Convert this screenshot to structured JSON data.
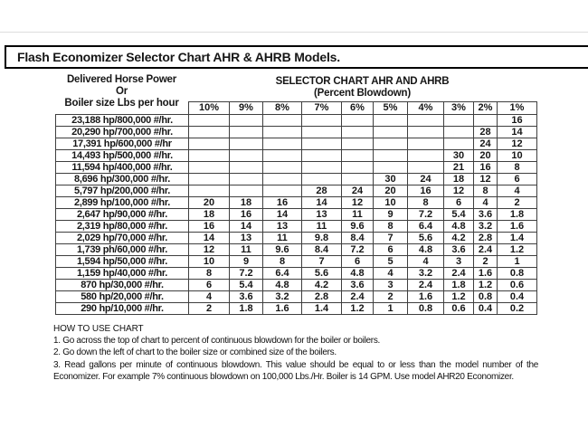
{
  "page": {
    "title": "Flash Economizer Selector Chart AHR & AHRB Models."
  },
  "left_header": {
    "line1": "Delivered Horse Power",
    "line2": "Or",
    "line3": "Boiler size Lbs per hour"
  },
  "right_header": {
    "line1": "SELECTOR CHART AHR AND AHRB",
    "line2": "(Percent Blowdown)"
  },
  "chart_data": {
    "type": "table",
    "title": "Selector Chart AHR and AHRB (gallons per minute of continuous blowdown)",
    "columns": [
      "10%",
      "9%",
      "8%",
      "7%",
      "6%",
      "5%",
      "4%",
      "3%",
      "2%",
      "1%"
    ],
    "rows": [
      {
        "label": "23,188 hp/800,000 #/hr.",
        "values": [
          "",
          "",
          "",
          "",
          "",
          "",
          "",
          "",
          "",
          "16"
        ]
      },
      {
        "label": "20,290 hp/700,000 #/hr.",
        "values": [
          "",
          "",
          "",
          "",
          "",
          "",
          "",
          "",
          "28",
          "14"
        ]
      },
      {
        "label": "17,391 hp/600,000 #/hr",
        "values": [
          "",
          "",
          "",
          "",
          "",
          "",
          "",
          "",
          "24",
          "12"
        ]
      },
      {
        "label": "14,493 hp/500,000 #/hr.",
        "values": [
          "",
          "",
          "",
          "",
          "",
          "",
          "",
          "30",
          "20",
          "10"
        ]
      },
      {
        "label": "11,594 hp/400,000 #/hr.",
        "values": [
          "",
          "",
          "",
          "",
          "",
          "",
          "",
          "21",
          "16",
          "8"
        ]
      },
      {
        "label": "8,696 hp/300,000 #/hr.",
        "values": [
          "",
          "",
          "",
          "",
          "",
          "30",
          "24",
          "18",
          "12",
          "6"
        ]
      },
      {
        "label": "5,797 hp/200,000 #/hr.",
        "values": [
          "",
          "",
          "",
          "28",
          "24",
          "20",
          "16",
          "12",
          "8",
          "4"
        ]
      },
      {
        "label": "2,899 hp/100,000 #/hr.",
        "values": [
          "20",
          "18",
          "16",
          "14",
          "12",
          "10",
          "8",
          "6",
          "4",
          "2"
        ]
      },
      {
        "label": "2,647 hp/90,000 #/hr.",
        "values": [
          "18",
          "16",
          "14",
          "13",
          "11",
          "9",
          "7.2",
          "5.4",
          "3.6",
          "1.8"
        ]
      },
      {
        "label": "2,319 hp/80,000 #/hr.",
        "values": [
          "16",
          "14",
          "13",
          "11",
          "9.6",
          "8",
          "6.4",
          "4.8",
          "3.2",
          "1.6"
        ]
      },
      {
        "label": "2,029 hp/70,000 #/hr.",
        "values": [
          "14",
          "13",
          "11",
          "9.8",
          "8.4",
          "7",
          "5.6",
          "4.2",
          "2.8",
          "1.4"
        ]
      },
      {
        "label": "1,739 ph/60,000 #/hr.",
        "values": [
          "12",
          "11",
          "9.6",
          "8.4",
          "7.2",
          "6",
          "4.8",
          "3.6",
          "2.4",
          "1.2"
        ]
      },
      {
        "label": "1,594 hp/50,000 #/hr.",
        "values": [
          "10",
          "9",
          "8",
          "7",
          "6",
          "5",
          "4",
          "3",
          "2",
          "1"
        ]
      },
      {
        "label": "1,159 hp/40,000 #/hr.",
        "values": [
          "8",
          "7.2",
          "6.4",
          "5.6",
          "4.8",
          "4",
          "3.2",
          "2.4",
          "1.6",
          "0.8"
        ]
      },
      {
        "label": "870 hp/30,000 #/hr.",
        "values": [
          "6",
          "5.4",
          "4.8",
          "4.2",
          "3.6",
          "3",
          "2.4",
          "1.8",
          "1.2",
          "0.6"
        ]
      },
      {
        "label": "580 hp/20,000 #/hr.",
        "values": [
          "4",
          "3.6",
          "3.2",
          "2.8",
          "2.4",
          "2",
          "1.6",
          "1.2",
          "0.8",
          "0.4"
        ]
      },
      {
        "label": "290 hp/10,000 #/hr.",
        "values": [
          "2",
          "1.8",
          "1.6",
          "1.4",
          "1.2",
          "1",
          "0.8",
          "0.6",
          "0.4",
          "0.2"
        ]
      }
    ]
  },
  "instructions": {
    "heading": "HOW TO USE CHART",
    "steps": [
      "1. Go across the top of chart to percent of continuous blowdown for the boiler or boilers.",
      "2. Go down the left of chart to the boiler size or combined size of the boilers.",
      "3. Read gallons per minute of continuous blowdown. This value should be equal to or less than the model number of the",
      "Economizer. For example 7% continuous blowdown on 100,000 Lbs./Hr. Boiler is 14 GPM. Use model AHR20 Economizer."
    ]
  },
  "colors": {
    "table_border": "#3f3f3f",
    "title_border": "#000000",
    "text": "#161616",
    "hairline": "#dddddd"
  }
}
